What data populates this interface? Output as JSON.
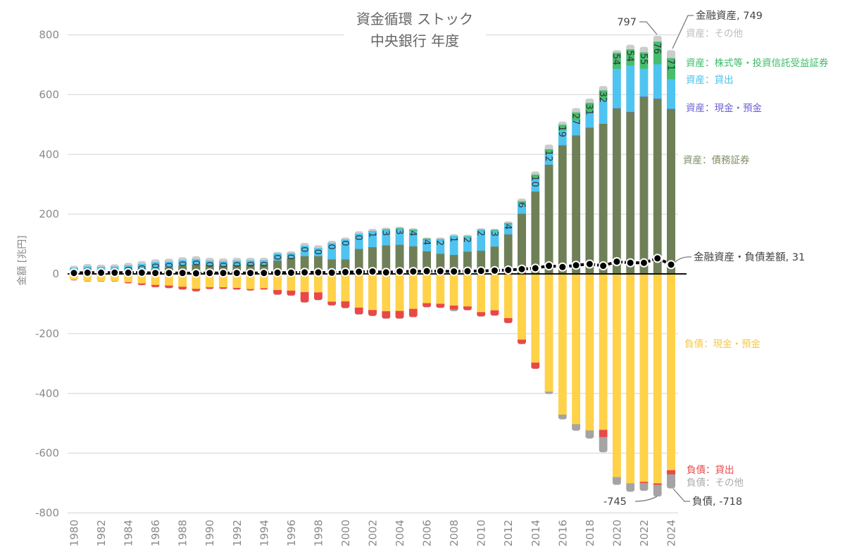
{
  "chart_data": {
    "type": "bar",
    "stacked": true,
    "title": "資金循環 ストック",
    "subtitle": "中央銀行 年度",
    "xlabel": "",
    "ylabel": "金額 [兆円]",
    "ylim": [
      -800,
      800
    ],
    "yticks": [
      800,
      600,
      400,
      200,
      0,
      -200,
      -400,
      -600,
      -800
    ],
    "grid": true,
    "legend": "right",
    "x": [
      1980,
      1981,
      1982,
      1983,
      1984,
      1985,
      1986,
      1987,
      1988,
      1989,
      1990,
      1991,
      1992,
      1993,
      1994,
      1995,
      1996,
      1997,
      1998,
      1999,
      2000,
      2001,
      2002,
      2003,
      2004,
      2005,
      2006,
      2007,
      2008,
      2009,
      2010,
      2011,
      2012,
      2013,
      2014,
      2015,
      2016,
      2017,
      2018,
      2019,
      2020,
      2021,
      2022,
      2023,
      2024
    ],
    "xticks": [
      1980,
      1982,
      1984,
      1986,
      1988,
      1990,
      1992,
      1994,
      1996,
      1998,
      2000,
      2002,
      2004,
      2006,
      2008,
      2010,
      2012,
      2014,
      2016,
      2018,
      2020,
      2022,
      2024
    ],
    "series": [
      {
        "name": "資産：債務証券",
        "color": "#6f8058",
        "label_color": "#7d8e66",
        "values": [
          12,
          14,
          14,
          14,
          16,
          16,
          18,
          22,
          28,
          32,
          30,
          28,
          30,
          32,
          32,
          45,
          53,
          60,
          60,
          49,
          49,
          84,
          90,
          96,
          98,
          93,
          76,
          68,
          64,
          75,
          78,
          92,
          133,
          202,
          276,
          366,
          431,
          464,
          490,
          503,
          554,
          542,
          593,
          586,
          552
        ]
      },
      {
        "name": "資産：現金・預金",
        "color": "#6f66d8",
        "label_color": "#6c62d5",
        "values": [
          0,
          0,
          0,
          0,
          0,
          0,
          0,
          0,
          0,
          0,
          0,
          0,
          0,
          0,
          0,
          0,
          0,
          0,
          0,
          0,
          0,
          0,
          0,
          0,
          0,
          0,
          0,
          0,
          0,
          0,
          0,
          0,
          0,
          0,
          0,
          0,
          0,
          0,
          0,
          0,
          1,
          1,
          1,
          1,
          1
        ]
      },
      {
        "name": "資産：貸出",
        "color": "#4fc4f0",
        "label_color": "#45c0ef",
        "values": [
          9,
          12,
          10,
          11,
          13,
          18,
          22,
          20,
          19,
          18,
          15,
          15,
          15,
          14,
          14,
          24,
          17,
          35,
          27,
          55,
          67,
          51,
          53,
          51,
          53,
          52,
          39,
          47,
          63,
          50,
          69,
          53,
          34,
          36,
          47,
          40,
          50,
          50,
          52,
          80,
          132,
          155,
          93,
          115,
          99
        ]
      },
      {
        "name": "資産：株式等・投資信託受益証券",
        "color": "#46be6e",
        "label_color": "#3dbb68",
        "value_labels": true,
        "values": [
          0,
          0,
          0,
          0,
          0,
          0,
          0,
          0,
          0,
          0,
          0,
          0,
          0,
          0,
          0,
          0,
          0,
          0,
          0,
          0,
          0,
          0,
          1,
          3,
          3,
          4,
          4,
          2,
          1,
          2,
          2,
          3,
          4,
          6,
          10,
          12,
          19,
          27,
          31,
          32,
          54,
          54,
          55,
          76,
          71
        ]
      },
      {
        "name": "資産：その他",
        "color": "#cccccc",
        "label_color": "#bdbdbd",
        "values": [
          6,
          7,
          7,
          7,
          8,
          9,
          9,
          9,
          9,
          9,
          9,
          9,
          9,
          8,
          8,
          5,
          6,
          9,
          9,
          7,
          6,
          8,
          7,
          5,
          4,
          4,
          3,
          5,
          5,
          4,
          4,
          3,
          5,
          8,
          10,
          15,
          10,
          14,
          14,
          14,
          8,
          15,
          18,
          19,
          26
        ]
      },
      {
        "name": "負債：現金・預金",
        "color": "#ffd24a",
        "label_color": "#f6c845",
        "values": [
          -20,
          -24,
          -24,
          -24,
          -28,
          -32,
          -37,
          -39,
          -43,
          -50,
          -45,
          -45,
          -47,
          -51,
          -48,
          -54,
          -56,
          -61,
          -62,
          -93,
          -92,
          -113,
          -121,
          -125,
          -124,
          -117,
          -98,
          -100,
          -106,
          -109,
          -128,
          -122,
          -148,
          -220,
          -297,
          -394,
          -471,
          -503,
          -524,
          -522,
          -680,
          -701,
          -696,
          -701,
          -657
        ]
      },
      {
        "name": "負債：貸出",
        "color": "#e94849",
        "label_color": "#e8474a",
        "values": [
          -1,
          -1,
          -1,
          -1,
          -3,
          -5,
          -7,
          -8,
          -9,
          -8,
          -5,
          -5,
          -5,
          -4,
          -4,
          -15,
          -16,
          -34,
          -25,
          -12,
          -22,
          -22,
          -19,
          -24,
          -25,
          -27,
          -13,
          -13,
          -13,
          -12,
          -14,
          -17,
          -16,
          -14,
          -20,
          0,
          0,
          0,
          0,
          -24,
          0,
          0,
          -4,
          -5,
          -14
        ]
      },
      {
        "name": "負債：その他",
        "color": "#a4a4a4",
        "label_color": "#ababab",
        "values": [
          -1,
          -1,
          -1,
          -1,
          -1,
          -1,
          -1,
          -1,
          -1,
          -1,
          -1,
          -1,
          -1,
          -1,
          -1,
          -1,
          -1,
          -1,
          -1,
          -1,
          -1,
          -1,
          -1,
          -1,
          -1,
          -1,
          -1,
          -1,
          -6,
          -1,
          -1,
          -1,
          -1,
          -1,
          -1,
          -8,
          -16,
          -22,
          -27,
          -51,
          -26,
          -28,
          -26,
          -39,
          -47
        ]
      }
    ],
    "line_series": {
      "name": "金融資産・負債差額",
      "color": "#000000",
      "values": [
        3,
        4,
        4,
        4,
        4,
        4,
        3,
        3,
        3,
        2,
        3,
        3,
        3,
        3,
        3,
        4,
        4,
        5,
        5,
        4,
        6,
        7,
        8,
        5,
        8,
        8,
        9,
        9,
        8,
        9,
        10,
        11,
        13,
        16,
        19,
        27,
        23,
        29,
        33,
        27,
        41,
        37,
        37,
        52,
        31
      ]
    },
    "annotations": [
      {
        "text": "金融資産, 749",
        "x": 2024,
        "y": 749
      },
      {
        "text": "797",
        "x": 2023,
        "y": 797
      },
      {
        "text": "金融資産・負債差額, 31",
        "x": 2024,
        "y": 31
      },
      {
        "text": "-745",
        "x": 2023,
        "y": -745
      },
      {
        "text": "負債, -718",
        "x": 2024,
        "y": -718
      }
    ]
  }
}
